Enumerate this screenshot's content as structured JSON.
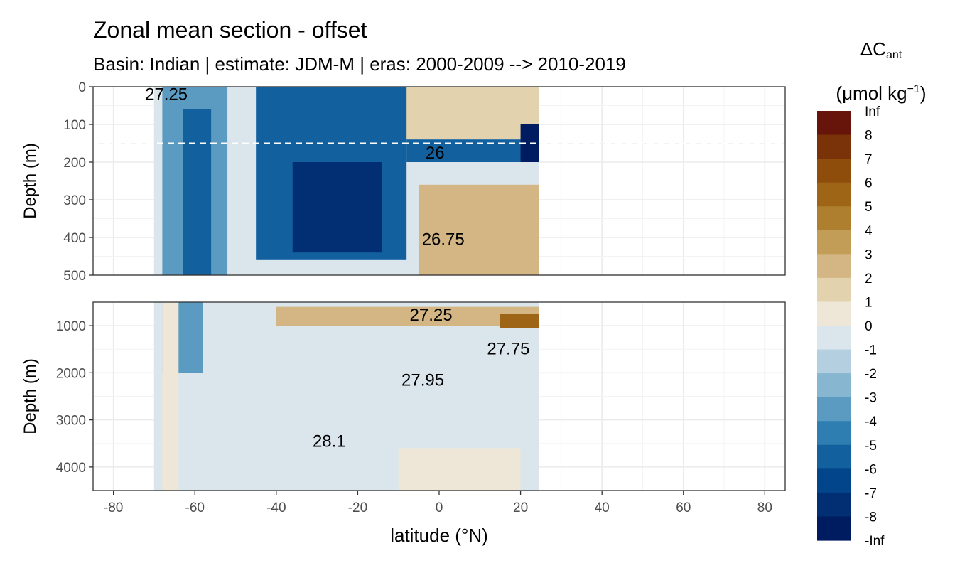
{
  "chart_data": {
    "type": "heatmap",
    "title": "Zonal mean section - offset",
    "subtitle": "Basin: Indian | estimate: JDM-M | eras: 2000-2009 --> 2010-2019",
    "xlabel": "latitude (°N)",
    "x_ticks": [
      "-80",
      "-60",
      "-40",
      "-20",
      "0",
      "20",
      "40",
      "60",
      "80"
    ],
    "xlim": [
      -85,
      85
    ],
    "data_lat_range": [
      -70,
      24.5
    ],
    "panels": [
      {
        "name": "upper",
        "ylabel": "Depth (m)",
        "y_ticks": [
          "0",
          "100",
          "200",
          "300",
          "400",
          "500"
        ],
        "ylim": [
          0,
          500
        ],
        "reference_line_depth": 150,
        "regions": [
          {
            "lat": [
              -70,
              24.5
            ],
            "depth": [
              0,
              500
            ],
            "value": -0.5
          },
          {
            "lat": [
              -25,
              24.5
            ],
            "depth": [
              0,
              140
            ],
            "value": 1.5
          },
          {
            "lat": [
              -5,
              24.5
            ],
            "depth": [
              260,
              500
            ],
            "value": 2.5
          },
          {
            "lat": [
              -68,
              -52
            ],
            "depth": [
              0,
              500
            ],
            "value": -3
          },
          {
            "lat": [
              -63,
              -56
            ],
            "depth": [
              60,
              500
            ],
            "value": -5
          },
          {
            "lat": [
              -45,
              -8
            ],
            "depth": [
              0,
              460
            ],
            "value": -5
          },
          {
            "lat": [
              -36,
              -14
            ],
            "depth": [
              200,
              440
            ],
            "value": -7
          },
          {
            "lat": [
              -8,
              24.5
            ],
            "depth": [
              140,
              200
            ],
            "value": -5
          },
          {
            "lat": [
              20,
              24.5
            ],
            "depth": [
              100,
              200
            ],
            "value": -8
          }
        ],
        "contour_labels": [
          {
            "text": "27.25",
            "lat": -67,
            "depth": 20
          },
          {
            "text": "26",
            "lat": -1,
            "depth": 175
          },
          {
            "text": "26.75",
            "lat": 1,
            "depth": 405
          }
        ]
      },
      {
        "name": "lower",
        "ylabel": "Depth (m)",
        "y_ticks": [
          "1000",
          "2000",
          "3000",
          "4000"
        ],
        "ylim": [
          500,
          4500
        ],
        "regions": [
          {
            "lat": [
              -70,
              24.5
            ],
            "depth": [
              500,
              4500
            ],
            "value": -0.5
          },
          {
            "lat": [
              -40,
              24.5
            ],
            "depth": [
              600,
              1000
            ],
            "value": 2.5
          },
          {
            "lat": [
              15,
              24.5
            ],
            "depth": [
              750,
              1050
            ],
            "value": 6
          },
          {
            "lat": [
              -10,
              20
            ],
            "depth": [
              3600,
              4500
            ],
            "value": 0.5
          },
          {
            "lat": [
              -68,
              -58
            ],
            "depth": [
              500,
              2000
            ],
            "value": -3
          },
          {
            "lat": [
              -68,
              -64
            ],
            "depth": [
              500,
              4500
            ],
            "value": 0.5
          }
        ],
        "contour_labels": [
          {
            "text": "27.25",
            "lat": -2,
            "depth": 770
          },
          {
            "text": "27.75",
            "lat": 17,
            "depth": 1490
          },
          {
            "text": "27.95",
            "lat": -4,
            "depth": 2150
          },
          {
            "text": "28.1",
            "lat": -27,
            "depth": 3450
          }
        ]
      }
    ],
    "legend": {
      "title_main": "ΔC",
      "title_sub": "ant",
      "units_prefix": "(μmol kg",
      "units_sup": "−1",
      "units_suffix": ")",
      "labels": [
        "Inf",
        "8",
        "7",
        "6",
        "5",
        "4",
        "3",
        "2",
        "1",
        "0",
        "-1",
        "-2",
        "-3",
        "-4",
        "-5",
        "-6",
        "-7",
        "-8",
        "-Inf"
      ],
      "colors": [
        "#67150a",
        "#7a3308",
        "#8f4d0c",
        "#9e6517",
        "#ae7f2e",
        "#c29d57",
        "#d3b684",
        "#e2d2ad",
        "#eee6d7",
        "#dbe5ec",
        "#b4cfe0",
        "#87b6d1",
        "#5b9bc2",
        "#2e7eb1",
        "#12609e",
        "#03458a",
        "#022f73",
        "#001c60"
      ]
    }
  }
}
